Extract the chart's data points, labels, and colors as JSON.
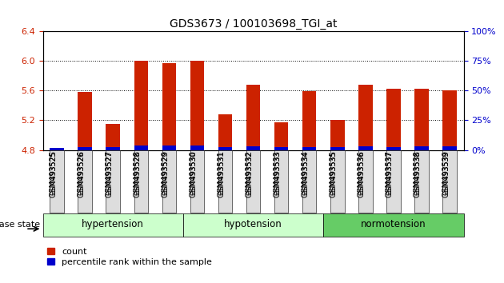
{
  "title": "GDS3673 / 100103698_TGI_at",
  "samples": [
    "GSM493525",
    "GSM493526",
    "GSM493527",
    "GSM493528",
    "GSM493529",
    "GSM493530",
    "GSM493531",
    "GSM493532",
    "GSM493533",
    "GSM493534",
    "GSM493535",
    "GSM493536",
    "GSM493537",
    "GSM493538",
    "GSM493539"
  ],
  "count_values": [
    4.8,
    5.58,
    5.15,
    6.0,
    5.97,
    6.0,
    5.28,
    5.68,
    5.17,
    5.59,
    5.21,
    5.68,
    5.62,
    5.62,
    5.6
  ],
  "percentile_values": [
    4.83,
    4.84,
    4.84,
    4.86,
    4.86,
    4.86,
    4.84,
    4.85,
    4.84,
    4.84,
    4.84,
    4.85,
    4.84,
    4.85,
    4.85
  ],
  "base": 4.8,
  "ylim_left": [
    4.8,
    6.4
  ],
  "ylim_right": [
    0,
    100
  ],
  "yticks_left": [
    4.8,
    5.2,
    5.6,
    6.0,
    6.4
  ],
  "yticks_right": [
    0,
    25,
    50,
    75,
    100
  ],
  "group_colors": [
    "#ccffcc",
    "#ccffcc",
    "#66cc66"
  ],
  "group_labels": [
    "hypertension",
    "hypotension",
    "normotension"
  ],
  "group_ranges": [
    [
      0,
      5
    ],
    [
      5,
      10
    ],
    [
      10,
      15
    ]
  ],
  "bar_color": "#cc2200",
  "percentile_color": "#0000cc",
  "bar_width": 0.5,
  "background_color": "#ffffff",
  "tick_label_color_left": "#cc2200",
  "tick_label_color_right": "#0000cc",
  "disease_state_label": "disease state",
  "legend_count_label": "count",
  "legend_percentile_label": "percentile rank within the sample"
}
